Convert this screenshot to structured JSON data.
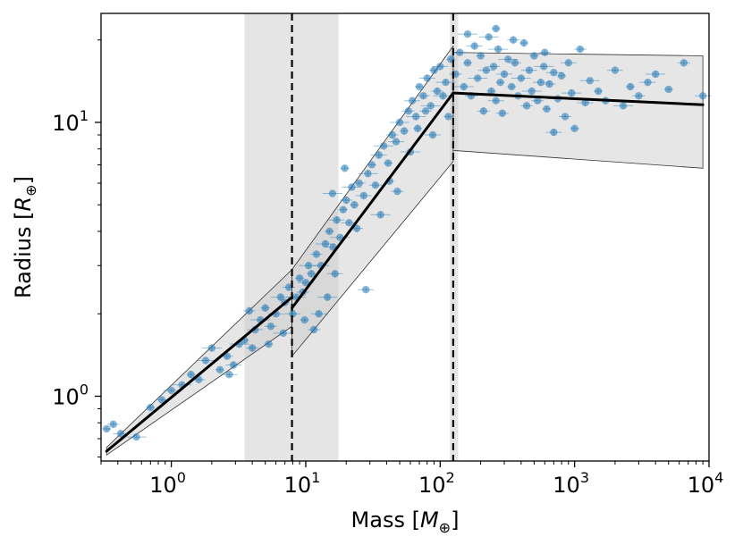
{
  "chart_data": {
    "type": "scatter",
    "xlabel": "Mass [M⊕]",
    "ylabel": "Radius [R⊕]",
    "xlabel_parts": {
      "base": "Mass [",
      "symbol": "M",
      "sub": "⊕",
      "end": "]"
    },
    "ylabel_parts": {
      "base": "Radius [",
      "symbol": "R",
      "sub": "⊕",
      "end": "]"
    },
    "xscale": "log",
    "yscale": "log",
    "xlim": [
      0.3,
      10000
    ],
    "ylim": [
      0.58,
      25
    ],
    "x_ticks": [
      {
        "value": 1,
        "base": "10",
        "exp": "0"
      },
      {
        "value": 10,
        "base": "10",
        "exp": "1"
      },
      {
        "value": 100,
        "base": "10",
        "exp": "2"
      },
      {
        "value": 1000,
        "base": "10",
        "exp": "3"
      },
      {
        "value": 10000,
        "base": "10",
        "exp": "4"
      }
    ],
    "y_ticks": [
      {
        "value": 1,
        "base": "10",
        "exp": "0"
      },
      {
        "value": 10,
        "base": "10",
        "exp": "1"
      }
    ],
    "transition_lines": [
      7.9,
      125
    ],
    "transition_bands": [
      [
        3.5,
        17.5
      ],
      [
        118,
        136
      ]
    ],
    "fit_segments": [
      {
        "x": [
          0.33,
          7.9
        ],
        "y": [
          0.63,
          2.3
        ]
      },
      {
        "x": [
          7.9,
          125
        ],
        "y": [
          2.1,
          12.8
        ]
      },
      {
        "x": [
          125,
          9000
        ],
        "y": [
          12.8,
          11.6
        ]
      }
    ],
    "upper_envelope": {
      "x": [
        0.33,
        7.9,
        7.9,
        125,
        125,
        9000
      ],
      "y": [
        0.65,
        2.9,
        2.9,
        19.0,
        18.0,
        17.5
      ]
    },
    "lower_envelope": {
      "x": [
        0.33,
        7.9,
        7.9,
        125,
        125,
        9000
      ],
      "y": [
        0.61,
        1.8,
        1.4,
        7.2,
        7.9,
        6.8
      ]
    },
    "marker_color": "#1f77b4",
    "line_color": "#000000",
    "band_color": "#d3d3d3",
    "points": [
      [
        0.33,
        0.76
      ],
      [
        0.37,
        0.79
      ],
      [
        0.42,
        0.73
      ],
      [
        0.55,
        0.71
      ],
      [
        0.7,
        0.91
      ],
      [
        0.85,
        0.97
      ],
      [
        1.0,
        1.05
      ],
      [
        1.2,
        1.1
      ],
      [
        1.4,
        1.2
      ],
      [
        1.6,
        1.15
      ],
      [
        1.8,
        1.35
      ],
      [
        2.0,
        1.5
      ],
      [
        2.3,
        1.25
      ],
      [
        2.6,
        1.4
      ],
      [
        2.9,
        1.3
      ],
      [
        3.2,
        1.55
      ],
      [
        3.5,
        1.6
      ],
      [
        3.8,
        2.05
      ],
      [
        4.2,
        1.75
      ],
      [
        4.6,
        1.9
      ],
      [
        5.0,
        2.1
      ],
      [
        5.5,
        1.8
      ],
      [
        6.0,
        2.0
      ],
      [
        6.5,
        2.3
      ],
      [
        7.0,
        2.2
      ],
      [
        7.5,
        2.5
      ],
      [
        8.0,
        2.0
      ],
      [
        8.5,
        2.3
      ],
      [
        9.0,
        2.7
      ],
      [
        9.5,
        2.4
      ],
      [
        10,
        2.6
      ],
      [
        10.5,
        3.0
      ],
      [
        11,
        2.8
      ],
      [
        12,
        3.3
      ],
      [
        13,
        3.0
      ],
      [
        14,
        3.6
      ],
      [
        15,
        4.0
      ],
      [
        16,
        3.5
      ],
      [
        17,
        4.4
      ],
      [
        18,
        3.8
      ],
      [
        19,
        4.8
      ],
      [
        20,
        5.2
      ],
      [
        21,
        4.3
      ],
      [
        22,
        5.8
      ],
      [
        23,
        5.0
      ],
      [
        25,
        6.0
      ],
      [
        27,
        5.4
      ],
      [
        29,
        6.5
      ],
      [
        31,
        7.0
      ],
      [
        33,
        5.9
      ],
      [
        35,
        7.6
      ],
      [
        38,
        8.2
      ],
      [
        41,
        7.1
      ],
      [
        44,
        9.0
      ],
      [
        47,
        8.5
      ],
      [
        50,
        10.0
      ],
      [
        54,
        9.3
      ],
      [
        58,
        11.0
      ],
      [
        62,
        12.0
      ],
      [
        66,
        10.5
      ],
      [
        70,
        13.5
      ],
      [
        75,
        12.5
      ],
      [
        80,
        14.5
      ],
      [
        85,
        11.5
      ],
      [
        90,
        15.5
      ],
      [
        95,
        13.0
      ],
      [
        100,
        16.0
      ],
      [
        110,
        14.0
      ],
      [
        120,
        17.0
      ],
      [
        130,
        15.0
      ],
      [
        140,
        18.0
      ],
      [
        150,
        13.5
      ],
      [
        160,
        16.5
      ],
      [
        170,
        12.5
      ],
      [
        180,
        19.0
      ],
      [
        190,
        14.5
      ],
      [
        200,
        17.5
      ],
      [
        210,
        11.0
      ],
      [
        220,
        15.5
      ],
      [
        230,
        20.5
      ],
      [
        240,
        13.0
      ],
      [
        250,
        16.0
      ],
      [
        260,
        12.0
      ],
      [
        270,
        18.5
      ],
      [
        280,
        14.0
      ],
      [
        290,
        10.8
      ],
      [
        300,
        15.0
      ],
      [
        320,
        17.0
      ],
      [
        340,
        13.5
      ],
      [
        360,
        16.5
      ],
      [
        380,
        12.5
      ],
      [
        400,
        14.5
      ],
      [
        420,
        19.5
      ],
      [
        440,
        11.5
      ],
      [
        460,
        15.5
      ],
      [
        480,
        13.0
      ],
      [
        500,
        17.5
      ],
      [
        530,
        12.0
      ],
      [
        560,
        14.0
      ],
      [
        590,
        16.0
      ],
      [
        620,
        11.2
      ],
      [
        650,
        13.8
      ],
      [
        700,
        15.2
      ],
      [
        750,
        12.2
      ],
      [
        800,
        14.8
      ],
      [
        850,
        10.5
      ],
      [
        900,
        16.5
      ],
      [
        950,
        12.8
      ],
      [
        1000,
        9.5
      ],
      [
        1100,
        18.5
      ],
      [
        1200,
        11.8
      ],
      [
        1300,
        14.2
      ],
      [
        1500,
        13.0
      ],
      [
        1700,
        12.0
      ],
      [
        2000,
        15.5
      ],
      [
        2300,
        11.5
      ],
      [
        2600,
        13.5
      ],
      [
        3000,
        12.5
      ],
      [
        3500,
        14.0
      ],
      [
        4000,
        15.0
      ],
      [
        5000,
        13.2
      ],
      [
        6500,
        16.5
      ],
      [
        9000,
        12.5
      ],
      [
        15.8,
        5.5
      ],
      [
        19.5,
        6.8
      ],
      [
        24,
        4.1
      ],
      [
        28,
        2.45
      ],
      [
        36,
        4.6
      ],
      [
        42,
        6.1
      ],
      [
        48,
        5.6
      ],
      [
        12.5,
        2.0
      ],
      [
        14.5,
        2.3
      ],
      [
        9.8,
        1.9
      ],
      [
        11.5,
        1.75
      ],
      [
        16.5,
        2.8
      ],
      [
        6.8,
        1.7
      ],
      [
        5.3,
        1.55
      ],
      [
        4.0,
        1.5
      ],
      [
        2.7,
        1.2
      ],
      [
        60,
        7.8
      ],
      [
        68,
        9.5
      ],
      [
        78,
        11.0
      ],
      [
        88,
        9.0
      ],
      [
        105,
        12.5
      ],
      [
        115,
        10.5
      ],
      [
        600,
        18.0
      ],
      [
        700,
        9.2
      ],
      [
        160,
        21.0
      ],
      [
        260,
        22.0
      ],
      [
        350,
        20.0
      ]
    ]
  }
}
